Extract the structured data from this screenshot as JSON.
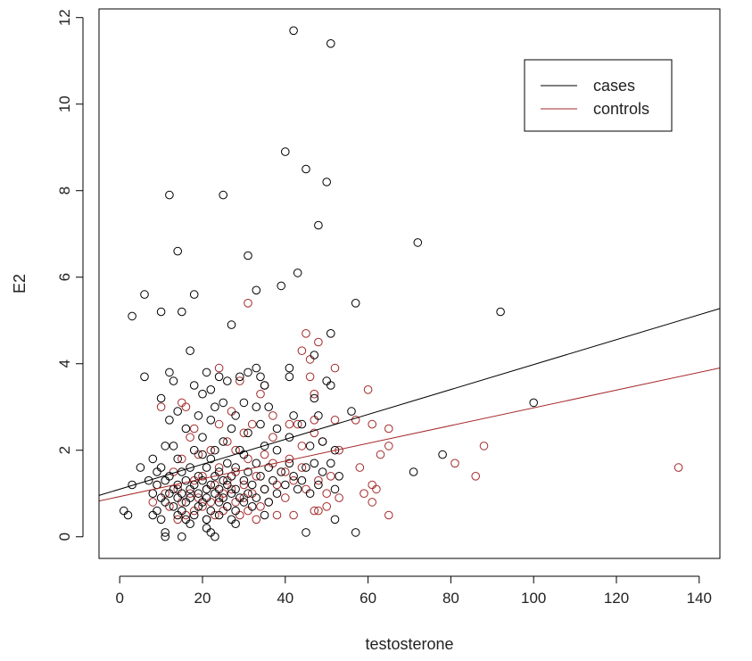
{
  "chart_data": {
    "type": "scatter",
    "title": "",
    "xlabel": "testosterone",
    "ylabel": "E2",
    "xlim": [
      -5,
      145
    ],
    "ylim": [
      -0.5,
      12.2
    ],
    "xticks": [
      0,
      20,
      40,
      60,
      80,
      100,
      120,
      140
    ],
    "yticks": [
      0,
      2,
      4,
      6,
      8,
      10,
      12
    ],
    "grid": false,
    "legend_position": "top-right",
    "series": [
      {
        "name": "cases",
        "color": "#000000",
        "fit_line": {
          "intercept": 1.1,
          "slope": 0.0288
        },
        "points": [
          [
            42,
            11.7
          ],
          [
            51,
            11.4
          ],
          [
            40,
            8.9
          ],
          [
            45,
            8.5
          ],
          [
            50,
            8.2
          ],
          [
            12,
            7.9
          ],
          [
            25,
            7.9
          ],
          [
            48,
            7.2
          ],
          [
            72,
            6.8
          ],
          [
            14,
            6.6
          ],
          [
            31,
            6.5
          ],
          [
            43,
            6.1
          ],
          [
            39,
            5.8
          ],
          [
            33,
            5.7
          ],
          [
            6,
            5.6
          ],
          [
            18,
            5.6
          ],
          [
            3,
            5.1
          ],
          [
            10,
            5.2
          ],
          [
            15,
            5.2
          ],
          [
            57,
            5.4
          ],
          [
            92,
            5.2
          ],
          [
            27,
            4.9
          ],
          [
            51,
            4.7
          ],
          [
            17,
            4.3
          ],
          [
            47,
            4.2
          ],
          [
            41,
            3.9
          ],
          [
            33,
            3.9
          ],
          [
            12,
            3.8
          ],
          [
            21,
            3.8
          ],
          [
            31,
            3.8
          ],
          [
            6,
            3.7
          ],
          [
            24,
            3.7
          ],
          [
            29,
            3.7
          ],
          [
            34,
            3.7
          ],
          [
            41,
            3.7
          ],
          [
            50,
            3.6
          ],
          [
            13,
            3.6
          ],
          [
            26,
            3.6
          ],
          [
            51,
            3.5
          ],
          [
            18,
            3.5
          ],
          [
            22,
            3.4
          ],
          [
            35,
            3.5
          ],
          [
            20,
            3.3
          ],
          [
            30,
            3.1
          ],
          [
            10,
            3.2
          ],
          [
            47,
            3.2
          ],
          [
            25,
            3.1
          ],
          [
            23,
            3.0
          ],
          [
            33,
            3.0
          ],
          [
            36,
            3.0
          ],
          [
            100,
            3.1
          ],
          [
            56,
            2.9
          ],
          [
            14,
            2.9
          ],
          [
            19,
            2.8
          ],
          [
            28,
            2.8
          ],
          [
            42,
            2.8
          ],
          [
            48,
            2.8
          ],
          [
            12,
            2.7
          ],
          [
            22,
            2.7
          ],
          [
            34,
            2.6
          ],
          [
            44,
            2.6
          ],
          [
            38,
            2.5
          ],
          [
            16,
            2.5
          ],
          [
            27,
            2.5
          ],
          [
            31,
            2.4
          ],
          [
            20,
            2.3
          ],
          [
            41,
            2.3
          ],
          [
            25,
            2.2
          ],
          [
            49,
            2.2
          ],
          [
            11,
            2.1
          ],
          [
            13,
            2.1
          ],
          [
            35,
            2.1
          ],
          [
            46,
            2.1
          ],
          [
            18,
            2.0
          ],
          [
            23,
            2.0
          ],
          [
            29,
            2.0
          ],
          [
            38,
            2.0
          ],
          [
            52,
            2.0
          ],
          [
            20,
            1.9
          ],
          [
            30,
            1.9
          ],
          [
            78,
            1.9
          ],
          [
            8,
            1.8
          ],
          [
            14,
            1.8
          ],
          [
            22,
            1.8
          ],
          [
            26,
            1.7
          ],
          [
            33,
            1.7
          ],
          [
            41,
            1.7
          ],
          [
            47,
            1.7
          ],
          [
            51,
            1.7
          ],
          [
            5,
            1.6
          ],
          [
            10,
            1.6
          ],
          [
            17,
            1.6
          ],
          [
            21,
            1.6
          ],
          [
            28,
            1.6
          ],
          [
            36,
            1.6
          ],
          [
            45,
            1.6
          ],
          [
            71,
            1.5
          ],
          [
            9,
            1.5
          ],
          [
            15,
            1.5
          ],
          [
            24,
            1.5
          ],
          [
            31,
            1.5
          ],
          [
            39,
            1.5
          ],
          [
            49,
            1.5
          ],
          [
            12,
            1.4
          ],
          [
            19,
            1.4
          ],
          [
            23,
            1.4
          ],
          [
            27,
            1.4
          ],
          [
            34,
            1.4
          ],
          [
            42,
            1.4
          ],
          [
            53,
            1.4
          ],
          [
            7,
            1.3
          ],
          [
            11,
            1.3
          ],
          [
            16,
            1.3
          ],
          [
            20,
            1.3
          ],
          [
            25,
            1.3
          ],
          [
            30,
            1.3
          ],
          [
            37,
            1.3
          ],
          [
            44,
            1.3
          ],
          [
            3,
            1.2
          ],
          [
            9,
            1.2
          ],
          [
            14,
            1.2
          ],
          [
            18,
            1.2
          ],
          [
            22,
            1.2
          ],
          [
            26,
            1.2
          ],
          [
            32,
            1.2
          ],
          [
            40,
            1.2
          ],
          [
            48,
            1.2
          ],
          [
            13,
            1.1
          ],
          [
            17,
            1.1
          ],
          [
            21,
            1.1
          ],
          [
            24,
            1.1
          ],
          [
            28,
            1.1
          ],
          [
            35,
            1.1
          ],
          [
            43,
            1.1
          ],
          [
            52,
            1.1
          ],
          [
            8,
            1.0
          ],
          [
            12,
            1.0
          ],
          [
            15,
            1.0
          ],
          [
            19,
            1.0
          ],
          [
            23,
            1.0
          ],
          [
            27,
            1.0
          ],
          [
            31,
            1.0
          ],
          [
            38,
            1.0
          ],
          [
            46,
            1.0
          ],
          [
            10,
            0.9
          ],
          [
            14,
            0.9
          ],
          [
            17,
            0.9
          ],
          [
            21,
            0.9
          ],
          [
            25,
            0.9
          ],
          [
            29,
            0.9
          ],
          [
            33,
            0.9
          ],
          [
            11,
            0.8
          ],
          [
            16,
            0.8
          ],
          [
            20,
            0.8
          ],
          [
            24,
            0.8
          ],
          [
            30,
            0.8
          ],
          [
            36,
            0.8
          ],
          [
            13,
            0.7
          ],
          [
            19,
            0.7
          ],
          [
            26,
            0.7
          ],
          [
            32,
            0.7
          ],
          [
            9,
            0.6
          ],
          [
            15,
            0.6
          ],
          [
            22,
            0.6
          ],
          [
            28,
            0.6
          ],
          [
            1,
            0.6
          ],
          [
            2,
            0.5
          ],
          [
            8,
            0.5
          ],
          [
            14,
            0.5
          ],
          [
            18,
            0.5
          ],
          [
            24,
            0.5
          ],
          [
            35,
            0.5
          ],
          [
            10,
            0.4
          ],
          [
            16,
            0.4
          ],
          [
            21,
            0.4
          ],
          [
            27,
            0.4
          ],
          [
            52,
            0.4
          ],
          [
            17,
            0.3
          ],
          [
            28,
            0.3
          ],
          [
            21,
            0.2
          ],
          [
            11,
            0.1
          ],
          [
            22,
            0.1
          ],
          [
            45,
            0.1
          ],
          [
            57,
            0.1
          ],
          [
            11,
            0.0
          ],
          [
            15,
            0.0
          ],
          [
            23,
            0.0
          ]
        ]
      },
      {
        "name": "controls",
        "color": "#a52a2a",
        "fit_line": {
          "intercept": 0.93,
          "slope": 0.0205
        },
        "points": [
          [
            31,
            5.4
          ],
          [
            45,
            4.7
          ],
          [
            44,
            4.3
          ],
          [
            48,
            4.5
          ],
          [
            46,
            4.1
          ],
          [
            24,
            3.9
          ],
          [
            52,
            3.9
          ],
          [
            46,
            3.7
          ],
          [
            29,
            3.6
          ],
          [
            35,
            3.5
          ],
          [
            60,
            3.4
          ],
          [
            34,
            3.3
          ],
          [
            47,
            3.3
          ],
          [
            15,
            3.1
          ],
          [
            16,
            3.0
          ],
          [
            10,
            3.0
          ],
          [
            27,
            2.9
          ],
          [
            37,
            2.8
          ],
          [
            47,
            2.7
          ],
          [
            52,
            2.7
          ],
          [
            57,
            2.7
          ],
          [
            24,
            2.6
          ],
          [
            32,
            2.6
          ],
          [
            41,
            2.6
          ],
          [
            43,
            2.6
          ],
          [
            61,
            2.6
          ],
          [
            65,
            2.5
          ],
          [
            18,
            2.5
          ],
          [
            30,
            2.4
          ],
          [
            47,
            2.4
          ],
          [
            37,
            2.3
          ],
          [
            17,
            2.3
          ],
          [
            26,
            2.2
          ],
          [
            49,
            2.2
          ],
          [
            88,
            2.1
          ],
          [
            65,
            2.1
          ],
          [
            44,
            2.1
          ],
          [
            22,
            2.0
          ],
          [
            28,
            2.0
          ],
          [
            53,
            2.0
          ],
          [
            35,
            1.9
          ],
          [
            19,
            1.9
          ],
          [
            63,
            1.9
          ],
          [
            41,
            1.8
          ],
          [
            15,
            1.8
          ],
          [
            31,
            1.8
          ],
          [
            81,
            1.7
          ],
          [
            37,
            1.7
          ],
          [
            58,
            1.6
          ],
          [
            135,
            1.6
          ],
          [
            24,
            1.6
          ],
          [
            44,
            1.6
          ],
          [
            13,
            1.5
          ],
          [
            28,
            1.5
          ],
          [
            40,
            1.5
          ],
          [
            51,
            1.4
          ],
          [
            86,
            1.4
          ],
          [
            20,
            1.4
          ],
          [
            33,
            1.4
          ],
          [
            18,
            1.3
          ],
          [
            26,
            1.3
          ],
          [
            42,
            1.3
          ],
          [
            48,
            1.3
          ],
          [
            9,
            1.2
          ],
          [
            23,
            1.2
          ],
          [
            30,
            1.2
          ],
          [
            38,
            1.2
          ],
          [
            61,
            1.2
          ],
          [
            14,
            1.1
          ],
          [
            21,
            1.1
          ],
          [
            27,
            1.1
          ],
          [
            35,
            1.1
          ],
          [
            45,
            1.1
          ],
          [
            62,
            1.1
          ],
          [
            11,
            1.0
          ],
          [
            17,
            1.0
          ],
          [
            25,
            1.0
          ],
          [
            32,
            1.0
          ],
          [
            50,
            1.0
          ],
          [
            59,
            1.0
          ],
          [
            19,
            0.9
          ],
          [
            24,
            0.9
          ],
          [
            30,
            0.9
          ],
          [
            40,
            0.9
          ],
          [
            53,
            0.9
          ],
          [
            8,
            0.8
          ],
          [
            15,
            0.8
          ],
          [
            22,
            0.8
          ],
          [
            28,
            0.8
          ],
          [
            36,
            0.8
          ],
          [
            61,
            0.8
          ],
          [
            12,
            0.7
          ],
          [
            20,
            0.7
          ],
          [
            26,
            0.7
          ],
          [
            34,
            0.7
          ],
          [
            50,
            0.7
          ],
          [
            18,
            0.6
          ],
          [
            25,
            0.6
          ],
          [
            31,
            0.6
          ],
          [
            47,
            0.6
          ],
          [
            48,
            0.6
          ],
          [
            16,
            0.5
          ],
          [
            23,
            0.5
          ],
          [
            29,
            0.5
          ],
          [
            38,
            0.5
          ],
          [
            42,
            0.5
          ],
          [
            65,
            0.5
          ],
          [
            14,
            0.4
          ],
          [
            21,
            0.4
          ],
          [
            33,
            0.4
          ]
        ]
      }
    ],
    "legend": [
      {
        "label": "cases",
        "color": "#000000"
      },
      {
        "label": "controls",
        "color": "#a52a2a"
      }
    ]
  }
}
